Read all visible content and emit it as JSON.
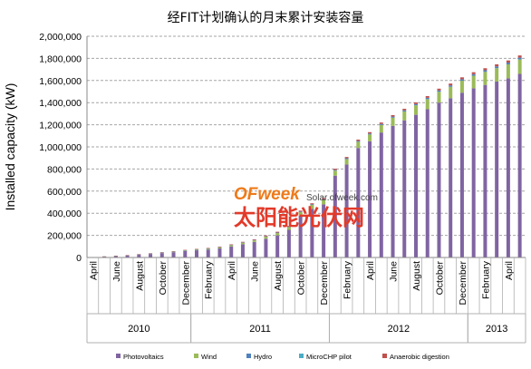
{
  "chart_data": {
    "type": "bar",
    "stacked": true,
    "title": "经FIT计划确认的月末累计安装容量",
    "ylabel": "Installed capacity (kW)",
    "ylim": [
      0,
      2000000
    ],
    "yticks": [
      "0",
      "200,000",
      "400,000",
      "600,000",
      "800,000",
      "1,000,000",
      "1,200,000",
      "1,400,000",
      "1,600,000",
      "1,800,000",
      "2,000,000"
    ],
    "grid": true,
    "legend_position": "bottom",
    "month_tick_labels": [
      {
        "index": 0,
        "label": "April"
      },
      {
        "index": 2,
        "label": "June"
      },
      {
        "index": 4,
        "label": "August"
      },
      {
        "index": 6,
        "label": "October"
      },
      {
        "index": 8,
        "label": "December"
      },
      {
        "index": 10,
        "label": "February"
      },
      {
        "index": 12,
        "label": "April"
      },
      {
        "index": 14,
        "label": "June"
      },
      {
        "index": 16,
        "label": "August"
      },
      {
        "index": 18,
        "label": "October"
      },
      {
        "index": 20,
        "label": "December"
      },
      {
        "index": 22,
        "label": "February"
      },
      {
        "index": 24,
        "label": "April"
      },
      {
        "index": 26,
        "label": "June"
      },
      {
        "index": 28,
        "label": "August"
      },
      {
        "index": 30,
        "label": "October"
      },
      {
        "index": 32,
        "label": "December"
      },
      {
        "index": 34,
        "label": "February"
      },
      {
        "index": 36,
        "label": "April"
      }
    ],
    "year_groups": [
      {
        "label": "2010",
        "start": 0,
        "end": 8
      },
      {
        "label": "2011",
        "start": 9,
        "end": 20
      },
      {
        "label": "2012",
        "start": 21,
        "end": 32
      },
      {
        "label": "2013",
        "start": 33,
        "end": 37
      }
    ],
    "categories": [
      "2010-04",
      "2010-05",
      "2010-06",
      "2010-07",
      "2010-08",
      "2010-09",
      "2010-10",
      "2010-11",
      "2010-12",
      "2011-01",
      "2011-02",
      "2011-03",
      "2011-04",
      "2011-05",
      "2011-06",
      "2011-07",
      "2011-08",
      "2011-09",
      "2011-10",
      "2011-11",
      "2011-12",
      "2012-01",
      "2012-02",
      "2012-03",
      "2012-04",
      "2012-05",
      "2012-06",
      "2012-07",
      "2012-08",
      "2012-09",
      "2012-10",
      "2012-11",
      "2012-12",
      "2013-01",
      "2013-02",
      "2013-03",
      "2013-04",
      "2013-05"
    ],
    "series": [
      {
        "name": "Photovoltaics",
        "color": "#8064a2",
        "values": [
          3000,
          8000,
          13000,
          18000,
          25000,
          32000,
          40000,
          48000,
          58000,
          65000,
          72000,
          82000,
          100000,
          120000,
          140000,
          170000,
          200000,
          250000,
          380000,
          440000,
          480000,
          740000,
          840000,
          990000,
          1050000,
          1130000,
          1190000,
          1240000,
          1290000,
          1340000,
          1400000,
          1440000,
          1490000,
          1530000,
          1560000,
          1590000,
          1620000,
          1660000
        ]
      },
      {
        "name": "Wind",
        "color": "#9bbb59",
        "values": [
          300,
          800,
          1200,
          1800,
          2500,
          3200,
          4000,
          5000,
          6000,
          7000,
          8000,
          9000,
          11000,
          13000,
          15000,
          18000,
          21000,
          25000,
          30000,
          35000,
          40000,
          45000,
          50000,
          56000,
          62000,
          68000,
          74000,
          80000,
          86000,
          92000,
          98000,
          103000,
          108000,
          113000,
          118000,
          122000,
          126000,
          130000
        ]
      },
      {
        "name": "Hydro",
        "color": "#4f81bd",
        "values": [
          100,
          300,
          500,
          700,
          900,
          1100,
          1300,
          1500,
          1700,
          1900,
          2100,
          2300,
          2600,
          3000,
          3400,
          3800,
          4200,
          4700,
          5200,
          5800,
          6400,
          7000,
          7600,
          8200,
          8800,
          9400,
          10000,
          10600,
          11200,
          11800,
          12400,
          13000,
          13600,
          14200,
          14800,
          15400,
          16000,
          16600
        ]
      },
      {
        "name": "MicroCHP pilot",
        "color": "#4bacc6",
        "values": [
          0,
          0,
          0,
          0,
          0,
          0,
          0,
          0,
          0,
          0,
          0,
          0,
          0,
          0,
          0,
          0,
          0,
          0,
          0,
          0,
          0,
          0,
          0,
          0,
          0,
          0,
          0,
          0,
          0,
          0,
          0,
          0,
          0,
          0,
          0,
          0,
          0,
          0
        ]
      },
      {
        "name": "Anaerobic digestion",
        "color": "#c0504d",
        "values": [
          200,
          500,
          800,
          1100,
          1500,
          1900,
          2300,
          2700,
          3100,
          3500,
          4000,
          4500,
          5000,
          5600,
          6200,
          6800,
          7400,
          8000,
          8600,
          9200,
          9800,
          10400,
          11000,
          11600,
          12200,
          12800,
          13400,
          14000,
          14600,
          15200,
          15800,
          16400,
          17000,
          17600,
          18200,
          18800,
          19400,
          20000
        ]
      }
    ]
  },
  "watermark": {
    "brand": "OFweek",
    "site": "Solar.ofweek.com",
    "chinese": "太阳能光伏网"
  }
}
